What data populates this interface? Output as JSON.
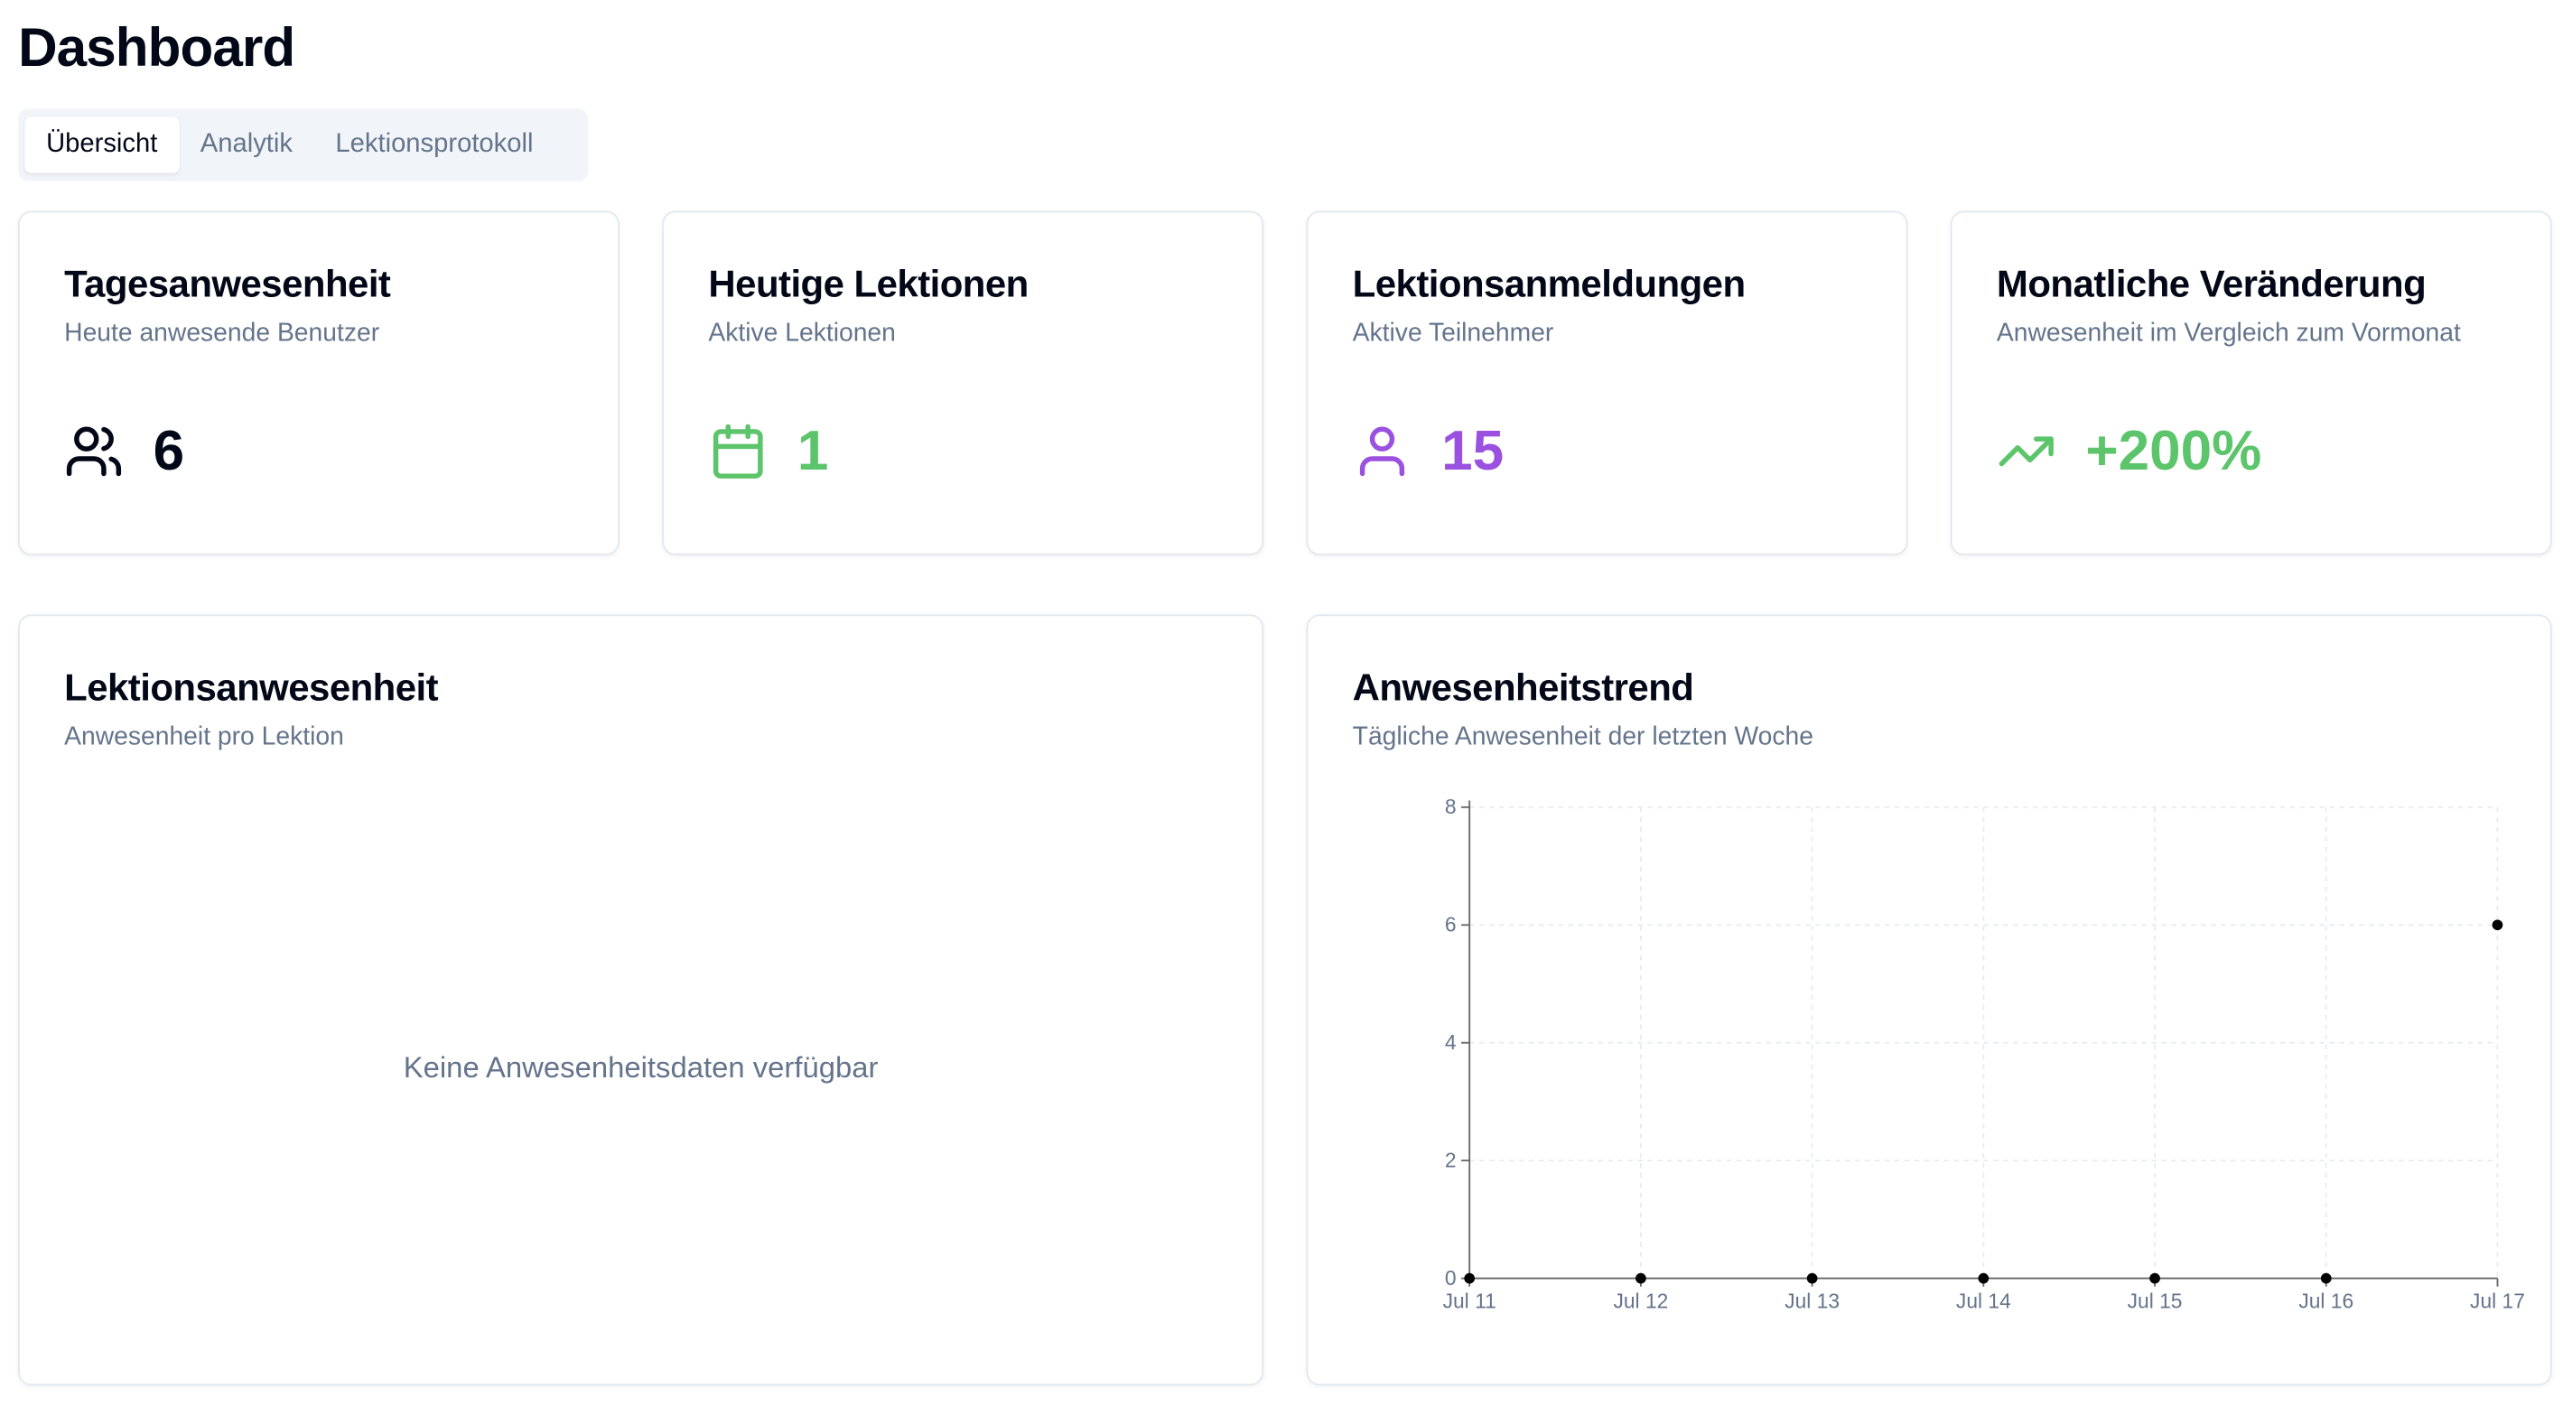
{
  "page": {
    "title": "Dashboard"
  },
  "tabs": [
    {
      "label": "Übersicht",
      "active": true
    },
    {
      "label": "Analytik",
      "active": false
    },
    {
      "label": "Lektionsprotokoll",
      "active": false
    }
  ],
  "stats": [
    {
      "title": "Tagesanwesenheit",
      "subtitle": "Heute anwesende Benutzer",
      "value": "6",
      "icon": "users-icon",
      "color": "#020817"
    },
    {
      "title": "Heutige Lektionen",
      "subtitle": "Aktive Lektionen",
      "value": "1",
      "icon": "calendar-icon",
      "color": "#5cc46a"
    },
    {
      "title": "Lektionsanmeldungen",
      "subtitle": "Aktive Teilnehmer",
      "value": "15",
      "icon": "user-icon",
      "color": "#9b51e0"
    },
    {
      "title": "Monatliche Veränderung",
      "subtitle": "Anwesenheit im Vergleich zum Vormonat",
      "value": "+200%",
      "icon": "trending-up-icon",
      "color": "#5cc46a"
    }
  ],
  "lesson_attendance": {
    "title": "Lektionsanwesenheit",
    "subtitle": "Anwesenheit pro Lektion",
    "empty_message": "Keine Anwesenheitsdaten verfügbar"
  },
  "trend": {
    "title": "Anwesenheitstrend",
    "subtitle": "Tägliche Anwesenheit der letzten Woche"
  },
  "chart_data": {
    "type": "line",
    "title": "Anwesenheitstrend",
    "x": [
      "Jul 11",
      "Jul 12",
      "Jul 13",
      "Jul 14",
      "Jul 15",
      "Jul 16",
      "Jul 17"
    ],
    "series": [
      {
        "values": [
          0,
          0,
          0,
          0,
          0,
          0,
          6
        ]
      }
    ],
    "ylim": [
      0,
      8
    ],
    "yticks": [
      0,
      2,
      4,
      6,
      8
    ],
    "grid": true,
    "xlabel": "",
    "ylabel": ""
  }
}
